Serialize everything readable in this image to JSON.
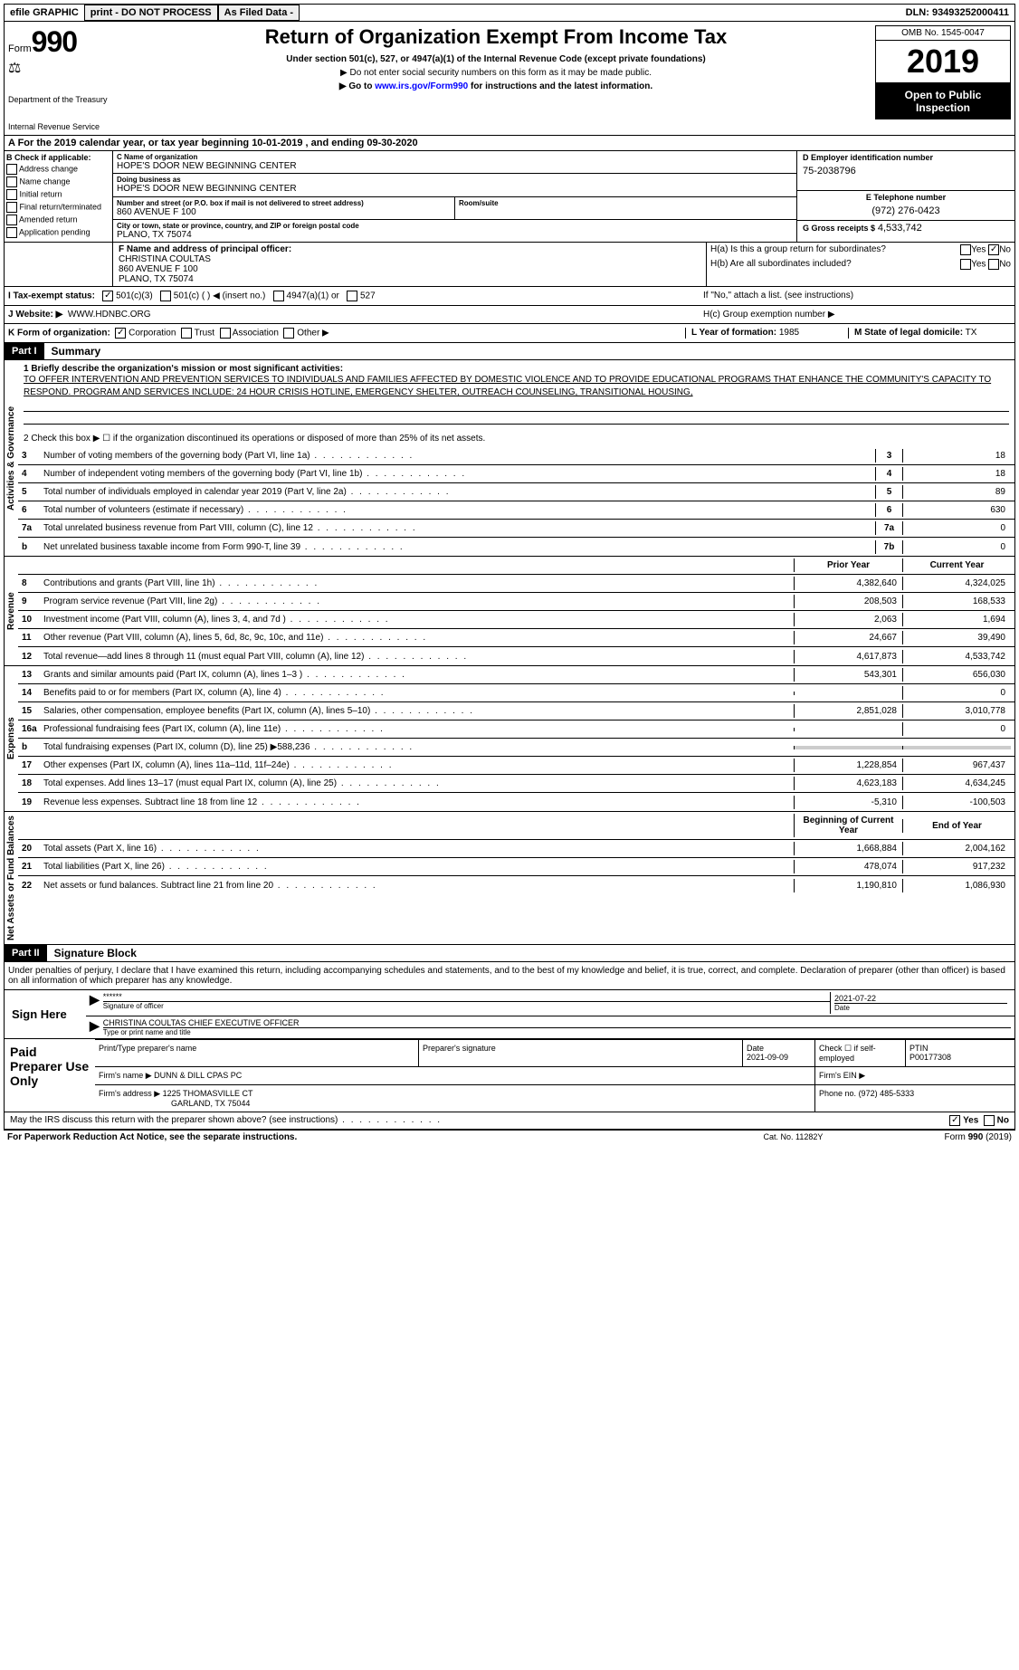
{
  "topbar": {
    "efile": "efile GRAPHIC",
    "print": "print - DO NOT PROCESS",
    "as_filed": "As Filed Data -",
    "dln": "DLN: 93493252000411"
  },
  "header": {
    "form_label": "Form",
    "form_number": "990",
    "dept": "Department of the Treasury",
    "irs": "Internal Revenue Service",
    "title": "Return of Organization Exempt From Income Tax",
    "subtitle": "Under section 501(c), 527, or 4947(a)(1) of the Internal Revenue Code (except private foundations)",
    "instr1": "▶ Do not enter social security numbers on this form as it may be made public.",
    "instr2": "▶ Go to www.irs.gov/Form990 for instructions and the latest information.",
    "instr2_link": "www.irs.gov/Form990",
    "omb": "OMB No. 1545-0047",
    "year": "2019",
    "open_public": "Open to Public Inspection"
  },
  "section_a": "A  For the 2019 calendar year, or tax year beginning 10-01-2019  , and ending 09-30-2020",
  "check_b": {
    "header": "B Check if applicable:",
    "items": [
      "Address change",
      "Name change",
      "Initial return",
      "Final return/terminated",
      "Amended return",
      "Application pending"
    ]
  },
  "org": {
    "c_label": "C Name of organization",
    "name": "HOPE'S DOOR NEW BEGINNING CENTER",
    "dba_label": "Doing business as",
    "dba": "HOPE'S DOOR NEW BEGINNING CENTER",
    "addr_label": "Number and street (or P.O. box if mail is not delivered to street address)",
    "room_label": "Room/suite",
    "addr": "860 AVENUE F 100",
    "city_label": "City or town, state or province, country, and ZIP or foreign postal code",
    "city": "PLANO, TX  75074"
  },
  "d": {
    "label": "D Employer identification number",
    "val": "75-2038796"
  },
  "e": {
    "label": "E Telephone number",
    "val": "(972) 276-0423"
  },
  "g": {
    "label": "G Gross receipts $",
    "val": "4,533,742"
  },
  "f": {
    "label": "F  Name and address of principal officer:",
    "name": "CHRISTINA COULTAS",
    "addr1": "860 AVENUE F 100",
    "addr2": "PLANO, TX  75074"
  },
  "h": {
    "a": "H(a)  Is this a group return for subordinates?",
    "b": "H(b)  Are all subordinates included?",
    "b_note": "If \"No,\" attach a list. (see instructions)",
    "c": "H(c)  Group exemption number ▶",
    "yes": "Yes",
    "no": "No"
  },
  "i": {
    "label": "I  Tax-exempt status:",
    "opt1": "501(c)(3)",
    "opt2": "501(c) (  ) ◀ (insert no.)",
    "opt3": "4947(a)(1) or",
    "opt4": "527"
  },
  "j": {
    "label": "J  Website: ▶",
    "val": "WWW.HDNBC.ORG"
  },
  "k": {
    "label": "K Form of organization:",
    "opts": [
      "Corporation",
      "Trust",
      "Association",
      "Other ▶"
    ]
  },
  "l": {
    "label": "L Year of formation:",
    "val": "1985"
  },
  "m": {
    "label": "M State of legal domicile:",
    "val": "TX"
  },
  "part1": {
    "header": "Part I",
    "title": "Summary",
    "line1_label": "1  Briefly describe the organization's mission or most significant activities:",
    "mission": "TO OFFER INTERVENTION AND PREVENTION SERVICES TO INDIVIDUALS AND FAMILIES AFFECTED BY DOMESTIC VIOLENCE AND TO PROVIDE EDUCATIONAL PROGRAMS THAT ENHANCE THE COMMUNITY'S CAPACITY TO RESPOND. PROGRAM AND SERVICES INCLUDE: 24 HOUR CRISIS HOTLINE, EMERGENCY SHELTER, OUTREACH COUNSELING, TRANSITIONAL HOUSING,",
    "line2": "2  Check this box ▶ ☐ if the organization discontinued its operations or disposed of more than 25% of its net assets.",
    "vert_gov": "Activities & Governance",
    "vert_rev": "Revenue",
    "vert_exp": "Expenses",
    "vert_net": "Net Assets or Fund Balances",
    "prior_year": "Prior Year",
    "current_year": "Current Year",
    "begin_year": "Beginning of Current Year",
    "end_year": "End of Year"
  },
  "gov_lines": [
    {
      "num": "3",
      "desc": "Number of voting members of the governing body (Part VI, line 1a)",
      "box": "3",
      "val": "18"
    },
    {
      "num": "4",
      "desc": "Number of independent voting members of the governing body (Part VI, line 1b)",
      "box": "4",
      "val": "18"
    },
    {
      "num": "5",
      "desc": "Total number of individuals employed in calendar year 2019 (Part V, line 2a)",
      "box": "5",
      "val": "89"
    },
    {
      "num": "6",
      "desc": "Total number of volunteers (estimate if necessary)",
      "box": "6",
      "val": "630"
    },
    {
      "num": "7a",
      "desc": "Total unrelated business revenue from Part VIII, column (C), line 12",
      "box": "7a",
      "val": "0"
    },
    {
      "num": "b",
      "desc": "Net unrelated business taxable income from Form 990-T, line 39",
      "box": "7b",
      "val": "0"
    }
  ],
  "rev_lines": [
    {
      "num": "8",
      "desc": "Contributions and grants (Part VIII, line 1h)",
      "prior": "4,382,640",
      "curr": "4,324,025"
    },
    {
      "num": "9",
      "desc": "Program service revenue (Part VIII, line 2g)",
      "prior": "208,503",
      "curr": "168,533"
    },
    {
      "num": "10",
      "desc": "Investment income (Part VIII, column (A), lines 3, 4, and 7d )",
      "prior": "2,063",
      "curr": "1,694"
    },
    {
      "num": "11",
      "desc": "Other revenue (Part VIII, column (A), lines 5, 6d, 8c, 9c, 10c, and 11e)",
      "prior": "24,667",
      "curr": "39,490"
    },
    {
      "num": "12",
      "desc": "Total revenue—add lines 8 through 11 (must equal Part VIII, column (A), line 12)",
      "prior": "4,617,873",
      "curr": "4,533,742"
    }
  ],
  "exp_lines": [
    {
      "num": "13",
      "desc": "Grants and similar amounts paid (Part IX, column (A), lines 1–3 )",
      "prior": "543,301",
      "curr": "656,030"
    },
    {
      "num": "14",
      "desc": "Benefits paid to or for members (Part IX, column (A), line 4)",
      "prior": "",
      "curr": "0"
    },
    {
      "num": "15",
      "desc": "Salaries, other compensation, employee benefits (Part IX, column (A), lines 5–10)",
      "prior": "2,851,028",
      "curr": "3,010,778"
    },
    {
      "num": "16a",
      "desc": "Professional fundraising fees (Part IX, column (A), line 11e)",
      "prior": "",
      "curr": "0"
    },
    {
      "num": "b",
      "desc": "Total fundraising expenses (Part IX, column (D), line 25) ▶588,236",
      "prior": "",
      "curr": ""
    },
    {
      "num": "17",
      "desc": "Other expenses (Part IX, column (A), lines 11a–11d, 11f–24e)",
      "prior": "1,228,854",
      "curr": "967,437"
    },
    {
      "num": "18",
      "desc": "Total expenses. Add lines 13–17 (must equal Part IX, column (A), line 25)",
      "prior": "4,623,183",
      "curr": "4,634,245"
    },
    {
      "num": "19",
      "desc": "Revenue less expenses. Subtract line 18 from line 12",
      "prior": "-5,310",
      "curr": "-100,503"
    }
  ],
  "net_lines": [
    {
      "num": "20",
      "desc": "Total assets (Part X, line 16)",
      "prior": "1,668,884",
      "curr": "2,004,162"
    },
    {
      "num": "21",
      "desc": "Total liabilities (Part X, line 26)",
      "prior": "478,074",
      "curr": "917,232"
    },
    {
      "num": "22",
      "desc": "Net assets or fund balances. Subtract line 21 from line 20",
      "prior": "1,190,810",
      "curr": "1,086,930"
    }
  ],
  "part2": {
    "header": "Part II",
    "title": "Signature Block",
    "declaration": "Under penalties of perjury, I declare that I have examined this return, including accompanying schedules and statements, and to the best of my knowledge and belief, it is true, correct, and complete. Declaration of preparer (other than officer) is based on all information of which preparer has any knowledge."
  },
  "sign": {
    "label": "Sign Here",
    "stars": "******",
    "sig_officer": "Signature of officer",
    "date": "2021-07-22",
    "date_label": "Date",
    "name": "CHRISTINA COULTAS CHIEF EXECUTIVE OFFICER",
    "type_label": "Type or print name and title"
  },
  "prep": {
    "label": "Paid Preparer Use Only",
    "print_label": "Print/Type preparer's name",
    "sig_label": "Preparer's signature",
    "date_label": "Date",
    "date": "2021-09-09",
    "check_label": "Check ☐ if self-employed",
    "ptin_label": "PTIN",
    "ptin": "P00177308",
    "firm_label": "Firm's name  ▶",
    "firm": "DUNN & DILL CPAS PC",
    "ein_label": "Firm's EIN ▶",
    "addr_label": "Firm's address ▶",
    "addr": "1225 THOMASVILLE CT",
    "addr2": "GARLAND, TX  75044",
    "phone_label": "Phone no.",
    "phone": "(972) 485-5333"
  },
  "discuss": "May the IRS discuss this return with the preparer shown above? (see instructions)",
  "footer": {
    "left": "For Paperwork Reduction Act Notice, see the separate instructions.",
    "mid": "Cat. No. 11282Y",
    "right": "Form 990 (2019)"
  }
}
